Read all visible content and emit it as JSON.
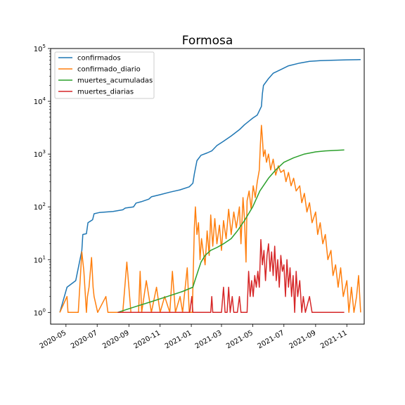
{
  "chart_data": {
    "type": "line",
    "title": "Formosa",
    "xlabel": "",
    "ylabel": "",
    "yscale": "log",
    "ylim": [
      0.6,
      100000
    ],
    "xlim": [
      "2020-04-01",
      "2021-12-05"
    ],
    "x_ticks": [
      "2020-05",
      "2020-07",
      "2020-09",
      "2020-11",
      "2021-01",
      "2021-03",
      "2021-05",
      "2021-07",
      "2021-09",
      "2021-11"
    ],
    "y_ticks": [
      {
        "value": 1,
        "base": "10",
        "exp": "0"
      },
      {
        "value": 10,
        "base": "10",
        "exp": "1"
      },
      {
        "value": 100,
        "base": "10",
        "exp": "2"
      },
      {
        "value": 1000,
        "base": "10",
        "exp": "3"
      },
      {
        "value": 10000,
        "base": "10",
        "exp": "4"
      },
      {
        "value": 100000,
        "base": "10",
        "exp": "5"
      }
    ],
    "grid": false,
    "legend_position": "top-left",
    "series": [
      {
        "name": "confirmados",
        "color": "#1f77b4",
        "points": [
          [
            "2020-04-19",
            1
          ],
          [
            "2020-05-03",
            3
          ],
          [
            "2020-05-20",
            4
          ],
          [
            "2020-06-01",
            15
          ],
          [
            "2020-06-03",
            30
          ],
          [
            "2020-06-10",
            31
          ],
          [
            "2020-06-13",
            50
          ],
          [
            "2020-06-22",
            57
          ],
          [
            "2020-06-25",
            74
          ],
          [
            "2020-07-05",
            78
          ],
          [
            "2020-08-01",
            82
          ],
          [
            "2020-08-20",
            88
          ],
          [
            "2020-08-25",
            95
          ],
          [
            "2020-09-10",
            100
          ],
          [
            "2020-09-15",
            118
          ],
          [
            "2020-09-25",
            125
          ],
          [
            "2020-10-10",
            140
          ],
          [
            "2020-10-15",
            155
          ],
          [
            "2020-11-01",
            170
          ],
          [
            "2020-11-20",
            190
          ],
          [
            "2020-12-10",
            210
          ],
          [
            "2020-12-28",
            240
          ],
          [
            "2021-01-04",
            280
          ],
          [
            "2021-01-07",
            420
          ],
          [
            "2021-01-12",
            750
          ],
          [
            "2021-01-20",
            950
          ],
          [
            "2021-02-01",
            1050
          ],
          [
            "2021-02-10",
            1150
          ],
          [
            "2021-02-20",
            1450
          ],
          [
            "2021-03-05",
            1750
          ],
          [
            "2021-03-20",
            2200
          ],
          [
            "2021-04-05",
            2900
          ],
          [
            "2021-04-15",
            3600
          ],
          [
            "2021-04-25",
            4300
          ],
          [
            "2021-05-01",
            4800
          ],
          [
            "2021-05-10",
            5500
          ],
          [
            "2021-05-18",
            8000
          ],
          [
            "2021-05-20",
            14000
          ],
          [
            "2021-05-22",
            20000
          ],
          [
            "2021-06-01",
            27000
          ],
          [
            "2021-06-10",
            34000
          ],
          [
            "2021-06-25",
            40000
          ],
          [
            "2021-07-10",
            47000
          ],
          [
            "2021-08-01",
            53000
          ],
          [
            "2021-08-20",
            57000
          ],
          [
            "2021-09-10",
            59000
          ],
          [
            "2021-10-01",
            60000
          ],
          [
            "2021-11-01",
            61000
          ],
          [
            "2021-11-28",
            61500
          ]
        ]
      },
      {
        "name": "confirmado_diario",
        "color": "#ff7f0e",
        "points": [
          [
            "2020-04-19",
            1
          ],
          [
            "2020-05-03",
            2
          ],
          [
            "2020-05-05",
            1
          ],
          [
            "2020-05-25",
            1
          ],
          [
            "2020-06-01",
            14
          ],
          [
            "2020-06-05",
            6
          ],
          [
            "2020-06-08",
            2
          ],
          [
            "2020-06-10",
            1
          ],
          [
            "2020-06-12",
            2
          ],
          [
            "2020-06-15",
            3
          ],
          [
            "2020-06-20",
            11
          ],
          [
            "2020-06-23",
            3
          ],
          [
            "2020-06-25",
            2
          ],
          [
            "2020-07-02",
            1
          ],
          [
            "2020-07-18",
            2
          ],
          [
            "2020-07-22",
            1
          ],
          [
            "2020-08-20",
            1
          ],
          [
            "2020-08-28",
            9
          ],
          [
            "2020-09-05",
            1
          ],
          [
            "2020-09-20",
            1
          ],
          [
            "2020-09-23",
            6
          ],
          [
            "2020-09-26",
            1
          ],
          [
            "2020-10-05",
            4
          ],
          [
            "2020-10-15",
            1
          ],
          [
            "2020-10-25",
            3
          ],
          [
            "2020-11-01",
            1
          ],
          [
            "2020-11-10",
            2
          ],
          [
            "2020-11-20",
            1
          ],
          [
            "2020-11-25",
            6
          ],
          [
            "2020-12-01",
            1
          ],
          [
            "2020-12-10",
            2
          ],
          [
            "2020-12-15",
            1
          ],
          [
            "2020-12-24",
            7
          ],
          [
            "2020-12-28",
            1
          ],
          [
            "2021-01-03",
            1
          ],
          [
            "2021-01-07",
            40
          ],
          [
            "2021-01-09",
            100
          ],
          [
            "2021-01-12",
            30
          ],
          [
            "2021-01-15",
            50
          ],
          [
            "2021-01-18",
            10
          ],
          [
            "2021-01-21",
            25
          ],
          [
            "2021-01-24",
            15
          ],
          [
            "2021-01-28",
            8
          ],
          [
            "2021-02-01",
            35
          ],
          [
            "2021-02-05",
            12
          ],
          [
            "2021-02-08",
            70
          ],
          [
            "2021-02-12",
            18
          ],
          [
            "2021-02-16",
            60
          ],
          [
            "2021-02-20",
            20
          ],
          [
            "2021-02-25",
            45
          ],
          [
            "2021-03-01",
            15
          ],
          [
            "2021-03-05",
            55
          ],
          [
            "2021-03-10",
            25
          ],
          [
            "2021-03-15",
            90
          ],
          [
            "2021-03-20",
            30
          ],
          [
            "2021-03-25",
            80
          ],
          [
            "2021-03-30",
            40
          ],
          [
            "2021-04-05",
            100
          ],
          [
            "2021-04-08",
            20
          ],
          [
            "2021-04-12",
            150
          ],
          [
            "2021-04-15",
            60
          ],
          [
            "2021-04-18",
            9
          ],
          [
            "2021-04-20",
            130
          ],
          [
            "2021-04-24",
            200
          ],
          [
            "2021-04-28",
            90
          ],
          [
            "2021-05-02",
            250
          ],
          [
            "2021-05-06",
            150
          ],
          [
            "2021-05-10",
            300
          ],
          [
            "2021-05-14",
            500
          ],
          [
            "2021-05-16",
            1500
          ],
          [
            "2021-05-18",
            3500
          ],
          [
            "2021-05-20",
            2000
          ],
          [
            "2021-05-22",
            900
          ],
          [
            "2021-05-25",
            1200
          ],
          [
            "2021-05-28",
            700
          ],
          [
            "2021-06-01",
            1000
          ],
          [
            "2021-06-05",
            500
          ],
          [
            "2021-06-10",
            800
          ],
          [
            "2021-06-15",
            400
          ],
          [
            "2021-06-20",
            600
          ],
          [
            "2021-06-25",
            450
          ],
          [
            "2021-07-01",
            500
          ],
          [
            "2021-07-05",
            300
          ],
          [
            "2021-07-10",
            450
          ],
          [
            "2021-07-15",
            250
          ],
          [
            "2021-07-20",
            350
          ],
          [
            "2021-07-25",
            200
          ],
          [
            "2021-08-01",
            250
          ],
          [
            "2021-08-05",
            120
          ],
          [
            "2021-08-10",
            180
          ],
          [
            "2021-08-15",
            80
          ],
          [
            "2021-08-20",
            120
          ],
          [
            "2021-08-25",
            50
          ],
          [
            "2021-09-01",
            80
          ],
          [
            "2021-09-05",
            30
          ],
          [
            "2021-09-10",
            50
          ],
          [
            "2021-09-15",
            20
          ],
          [
            "2021-09-20",
            30
          ],
          [
            "2021-09-25",
            10
          ],
          [
            "2021-10-01",
            15
          ],
          [
            "2021-10-05",
            5
          ],
          [
            "2021-10-10",
            8
          ],
          [
            "2021-10-15",
            3
          ],
          [
            "2021-10-20",
            7
          ],
          [
            "2021-10-25",
            2
          ],
          [
            "2021-11-01",
            4
          ],
          [
            "2021-11-05",
            1
          ],
          [
            "2021-11-10",
            3
          ],
          [
            "2021-11-15",
            1
          ],
          [
            "2021-11-20",
            2
          ],
          [
            "2021-11-24",
            5
          ],
          [
            "2021-11-28",
            1
          ]
        ]
      },
      {
        "name": "muertes_acumuladas",
        "color": "#2ca02c",
        "points": [
          [
            "2020-08-10",
            1
          ],
          [
            "2020-09-15",
            1.3
          ],
          [
            "2020-10-15",
            1.6
          ],
          [
            "2020-11-15",
            2
          ],
          [
            "2020-12-15",
            2.5
          ],
          [
            "2021-01-04",
            3
          ],
          [
            "2021-01-08",
            4
          ],
          [
            "2021-01-14",
            6
          ],
          [
            "2021-01-20",
            9
          ],
          [
            "2021-01-28",
            12
          ],
          [
            "2021-02-08",
            15
          ],
          [
            "2021-02-20",
            17
          ],
          [
            "2021-03-05",
            20
          ],
          [
            "2021-03-20",
            25
          ],
          [
            "2021-04-01",
            35
          ],
          [
            "2021-04-15",
            55
          ],
          [
            "2021-05-01",
            100
          ],
          [
            "2021-05-15",
            200
          ],
          [
            "2021-06-01",
            350
          ],
          [
            "2021-06-15",
            500
          ],
          [
            "2021-07-01",
            700
          ],
          [
            "2021-07-20",
            850
          ],
          [
            "2021-08-10",
            1000
          ],
          [
            "2021-09-01",
            1100
          ],
          [
            "2021-09-20",
            1150
          ],
          [
            "2021-10-27",
            1200
          ]
        ]
      },
      {
        "name": "muertes_diarias",
        "color": "#d62728",
        "points": [
          [
            "2020-08-10",
            1
          ],
          [
            "2020-12-29",
            1
          ],
          [
            "2021-01-02",
            2
          ],
          [
            "2021-01-04",
            1
          ],
          [
            "2021-02-08",
            1
          ],
          [
            "2021-02-10",
            2
          ],
          [
            "2021-02-12",
            1
          ],
          [
            "2021-03-01",
            1
          ],
          [
            "2021-03-05",
            3
          ],
          [
            "2021-03-08",
            1
          ],
          [
            "2021-03-12",
            1
          ],
          [
            "2021-03-15",
            3
          ],
          [
            "2021-03-18",
            1
          ],
          [
            "2021-03-22",
            2
          ],
          [
            "2021-03-25",
            1
          ],
          [
            "2021-04-01",
            1
          ],
          [
            "2021-04-05",
            2
          ],
          [
            "2021-04-08",
            1
          ],
          [
            "2021-04-20",
            1
          ],
          [
            "2021-04-23",
            6
          ],
          [
            "2021-04-26",
            2
          ],
          [
            "2021-04-29",
            4
          ],
          [
            "2021-05-02",
            2
          ],
          [
            "2021-05-05",
            5
          ],
          [
            "2021-05-08",
            3
          ],
          [
            "2021-05-11",
            6
          ],
          [
            "2021-05-14",
            3
          ],
          [
            "2021-05-17",
            24
          ],
          [
            "2021-05-20",
            8
          ],
          [
            "2021-05-23",
            15
          ],
          [
            "2021-05-26",
            4
          ],
          [
            "2021-05-29",
            12
          ],
          [
            "2021-06-01",
            20
          ],
          [
            "2021-06-04",
            6
          ],
          [
            "2021-06-07",
            14
          ],
          [
            "2021-06-10",
            5
          ],
          [
            "2021-06-13",
            18
          ],
          [
            "2021-06-16",
            4
          ],
          [
            "2021-06-19",
            10
          ],
          [
            "2021-06-22",
            3
          ],
          [
            "2021-06-25",
            12
          ],
          [
            "2021-06-28",
            6
          ],
          [
            "2021-07-01",
            8
          ],
          [
            "2021-07-04",
            2
          ],
          [
            "2021-07-07",
            10
          ],
          [
            "2021-07-10",
            3
          ],
          [
            "2021-07-13",
            7
          ],
          [
            "2021-07-16",
            2
          ],
          [
            "2021-07-19",
            5
          ],
          [
            "2021-07-22",
            1
          ],
          [
            "2021-07-25",
            6
          ],
          [
            "2021-07-28",
            2
          ],
          [
            "2021-08-01",
            4
          ],
          [
            "2021-08-05",
            1
          ],
          [
            "2021-08-08",
            2
          ],
          [
            "2021-08-12",
            1
          ],
          [
            "2021-08-20",
            2
          ],
          [
            "2021-08-25",
            1
          ],
          [
            "2021-09-15",
            1
          ],
          [
            "2021-10-27",
            1
          ]
        ]
      }
    ]
  }
}
